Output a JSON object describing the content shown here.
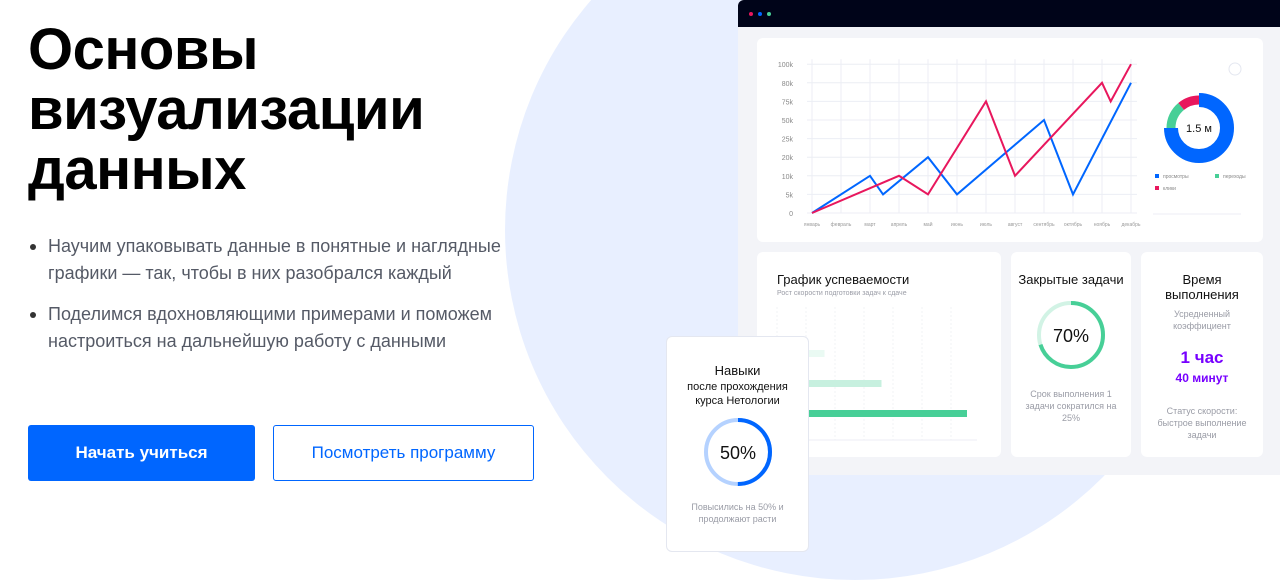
{
  "hero": {
    "title_lines": [
      "Основы",
      "визуализации",
      "данных"
    ],
    "bullets": [
      "Научим упаковывать данные в понятные и наглядные графики — так, чтобы в них разобрался каждый",
      "Поделимся вдохновляющими примерами и поможем настроиться на дальнейшую работу с данными"
    ],
    "primary_button": "Начать учиться",
    "secondary_button": "Посмотреть программу"
  },
  "colors": {
    "accent": "#0066ff",
    "red": "#e8175d",
    "green": "#47cf97",
    "purple": "#7700ff",
    "window_bar": "#000419"
  },
  "chart_data": [
    {
      "type": "line",
      "y_ticks": [
        "0",
        "5k",
        "10k",
        "20k",
        "25k",
        "50k",
        "75k",
        "80k",
        "100k"
      ],
      "x_ticks": [
        "январь",
        "февраль",
        "март",
        "апрель",
        "май",
        "июнь",
        "июль",
        "август",
        "сентябрь",
        "октябрь",
        "ноябрь",
        "декабрь"
      ],
      "series": [
        {
          "color": "#0066ff",
          "points": [
            [
              0,
              "0"
            ],
            [
              2,
              "10k"
            ],
            [
              2.45,
              "5k"
            ],
            [
              4,
              "20k"
            ],
            [
              5,
              "5k"
            ],
            [
              8,
              "50k"
            ],
            [
              9,
              "5k"
            ],
            [
              11,
              "80k"
            ]
          ]
        },
        {
          "color": "#e8175d",
          "points": [
            [
              0,
              "0"
            ],
            [
              3,
              "10k"
            ],
            [
              4,
              "5k"
            ],
            [
              6,
              "75k"
            ],
            [
              7,
              "10k"
            ],
            [
              10,
              "80k"
            ],
            [
              10.3,
              "75k"
            ],
            [
              11,
              "100k"
            ]
          ]
        }
      ],
      "grid": true
    },
    {
      "type": "pie",
      "center_label": "1.5 м",
      "legend": [
        "просмотры",
        "переходы",
        "клики"
      ],
      "values": [
        75,
        14,
        11
      ],
      "colors": [
        "#0066ff",
        "#47cf97",
        "#e8175d"
      ]
    },
    {
      "type": "bar",
      "title": "График успеваемости",
      "subtitle": "Рост скорости подготовки задач к сдаче",
      "values": [
        0.25,
        0.55,
        1.0
      ],
      "colors": [
        "#eafaf3",
        "#c7f0df",
        "#47cf97"
      ]
    }
  ],
  "cards": {
    "closed": {
      "title": "Закрытые задачи",
      "percent": 70,
      "label": "70%",
      "desc": "Срок выполнения 1 задачи сократился на 25%"
    },
    "time": {
      "title": "Время выполнения",
      "sub": "Усредненный коэффициент",
      "value1": "1 час",
      "value2": "40 минут",
      "desc": "Статус скорости: быстрое выполнение задачи"
    },
    "skills": {
      "title": "Навыки",
      "sub": "после прохождения курса Нетологии",
      "percent": 50,
      "label": "50%",
      "desc": "Повысились на 50% и продолжают расти"
    }
  }
}
